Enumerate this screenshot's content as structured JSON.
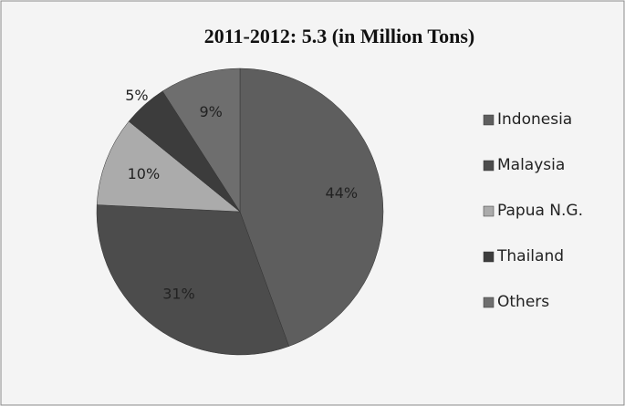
{
  "chart_data": {
    "type": "pie",
    "title": "2011-2012: 5.3 (in Million Tons)",
    "categories": [
      "Indonesia",
      "Malaysia",
      "Papua N.G.",
      "Thailand",
      "Others"
    ],
    "values": [
      44,
      31,
      10,
      5,
      9
    ],
    "value_labels": [
      "44%",
      "31%",
      "10%",
      "5%",
      "9%"
    ],
    "colors": [
      "#5e5e5e",
      "#4c4c4c",
      "#ababab",
      "#3c3c3c",
      "#6e6e6e"
    ],
    "legend": "right"
  }
}
